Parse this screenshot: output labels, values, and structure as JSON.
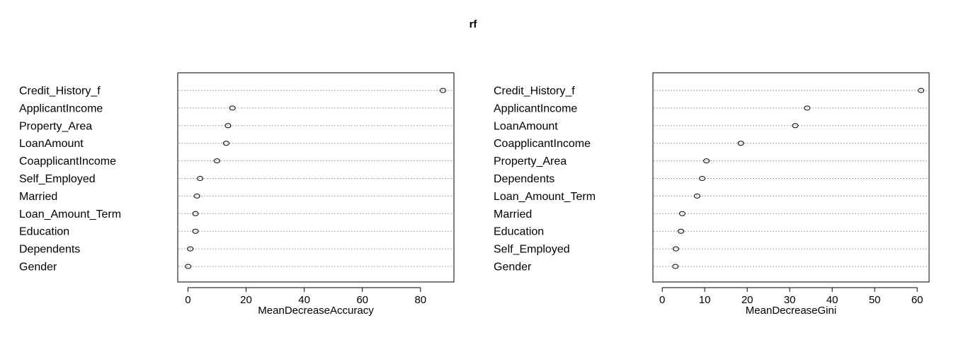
{
  "title": "rf",
  "chart_data": [
    {
      "type": "scatter",
      "subtype": "dotchart",
      "xlabel": "MeanDecreaseAccuracy",
      "ylabel": "",
      "xlim": [
        -3.5,
        91.5
      ],
      "xticks": [
        0,
        20,
        40,
        60,
        80
      ],
      "grid": "horizontal-dotted",
      "categories": [
        "Credit_History_f",
        "ApplicantIncome",
        "Property_Area",
        "LoanAmount",
        "CoapplicantIncome",
        "Self_Employed",
        "Married",
        "Loan_Amount_Term",
        "Education",
        "Dependents",
        "Gender"
      ],
      "values": [
        87.7,
        15.3,
        13.8,
        13.2,
        10.0,
        4.2,
        3.1,
        2.6,
        2.6,
        0.8,
        0.1
      ]
    },
    {
      "type": "scatter",
      "subtype": "dotchart",
      "xlabel": "MeanDecreaseGini",
      "ylabel": "",
      "xlim": [
        -2.2,
        62.8
      ],
      "xticks": [
        0,
        10,
        20,
        30,
        40,
        50,
        60
      ],
      "grid": "horizontal-dotted",
      "categories": [
        "Credit_History_f",
        "ApplicantIncome",
        "LoanAmount",
        "CoapplicantIncome",
        "Property_Area",
        "Dependents",
        "Loan_Amount_Term",
        "Married",
        "Education",
        "Self_Employed",
        "Gender"
      ],
      "values": [
        60.9,
        34.1,
        31.3,
        18.5,
        10.4,
        9.4,
        8.2,
        4.7,
        4.4,
        3.2,
        3.1
      ]
    }
  ]
}
